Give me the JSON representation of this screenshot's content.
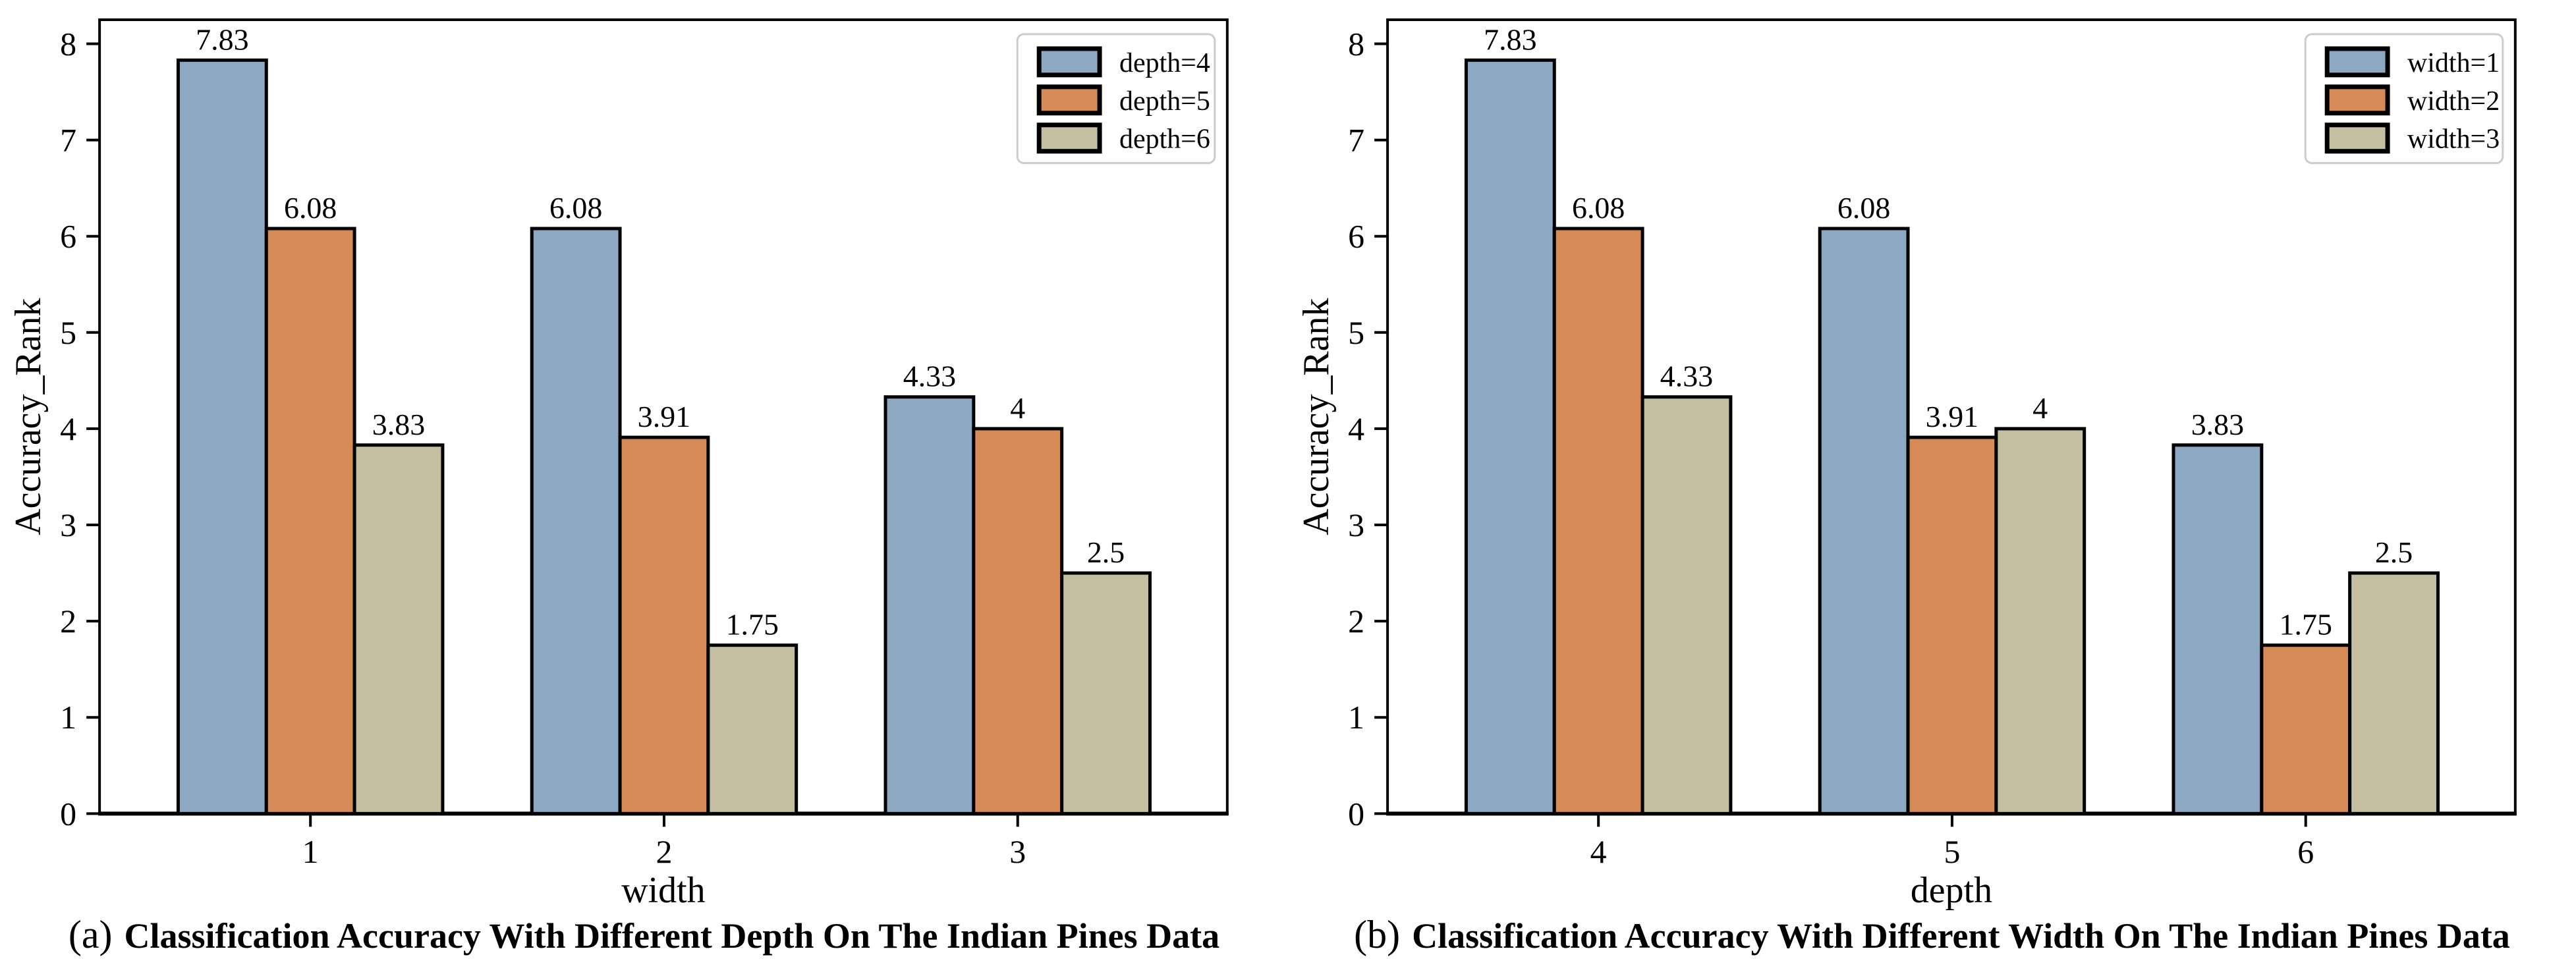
{
  "style": {
    "series_colors": [
      "#8CA8C2",
      "#D68A55",
      "#C5BFA1"
    ],
    "bar_edge_color": "#000000",
    "axis_color": "#000000",
    "text_color": "#000000",
    "legend_border_color": "#cccccc",
    "legend_background": "#ffffff",
    "background": "#ffffff"
  },
  "chart_data": [
    {
      "type": "bar",
      "title": "",
      "categories": [
        "1",
        "2",
        "3"
      ],
      "series": [
        {
          "name": "depth=4",
          "values": [
            7.83,
            6.08,
            4.33
          ],
          "value_labels": [
            "7.83",
            "6.08",
            "4.33"
          ]
        },
        {
          "name": "depth=5",
          "values": [
            6.08,
            3.91,
            4.0
          ],
          "value_labels": [
            "6.08",
            "3.91",
            "4"
          ]
        },
        {
          "name": "depth=6",
          "values": [
            3.83,
            1.75,
            2.5
          ],
          "value_labels": [
            "3.83",
            "1.75",
            "2.5"
          ]
        }
      ],
      "xlabel": "width",
      "ylabel": "Accuracy_Rank",
      "yticks": [
        "0",
        "1",
        "2",
        "3",
        "4",
        "5",
        "6",
        "7",
        "8"
      ],
      "ylim": [
        0,
        8.25
      ],
      "grid": false,
      "legend_position": "upper-right",
      "caption_prefix": "(a)",
      "caption": "Classification Accuracy With Different Depth On The Indian Pines Data"
    },
    {
      "type": "bar",
      "title": "",
      "categories": [
        "4",
        "5",
        "6"
      ],
      "series": [
        {
          "name": "width=1",
          "values": [
            7.83,
            6.08,
            3.83
          ],
          "value_labels": [
            "7.83",
            "6.08",
            "3.83"
          ]
        },
        {
          "name": "width=2",
          "values": [
            6.08,
            3.91,
            1.75
          ],
          "value_labels": [
            "6.08",
            "3.91",
            "1.75"
          ]
        },
        {
          "name": "width=3",
          "values": [
            4.33,
            4.0,
            2.5
          ],
          "value_labels": [
            "4.33",
            "4",
            "2.5"
          ]
        }
      ],
      "xlabel": "depth",
      "ylabel": "Accuracy_Rank",
      "yticks": [
        "0",
        "1",
        "2",
        "3",
        "4",
        "5",
        "6",
        "7",
        "8"
      ],
      "ylim": [
        0,
        8.25
      ],
      "grid": false,
      "legend_position": "upper-right",
      "caption_prefix": "(b)",
      "caption": "Classification Accuracy With Different Width On The Indian Pines Data"
    }
  ]
}
